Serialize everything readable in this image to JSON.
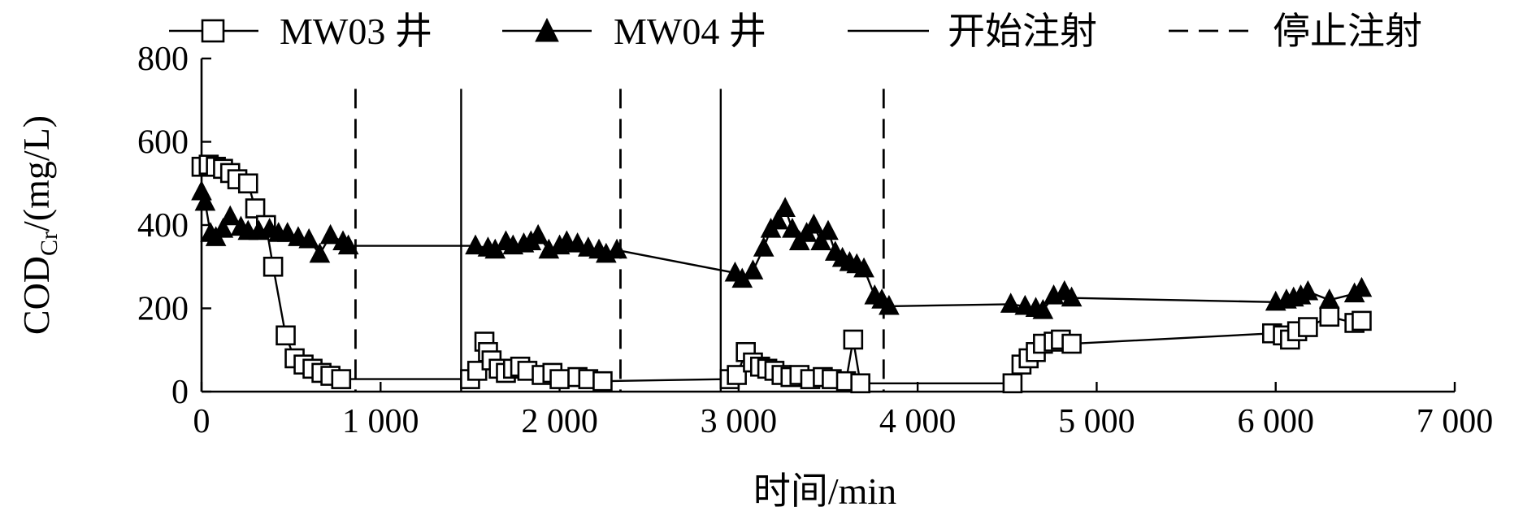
{
  "chart_data": {
    "type": "scatter",
    "title": "",
    "xlabel": "时间/min",
    "ylabel": {
      "main": "COD",
      "sub": "Cr",
      "rest": "/(mg/L)"
    },
    "xlim": [
      0,
      7000
    ],
    "ylim": [
      0,
      800
    ],
    "x_ticks": [
      {
        "value": 0,
        "label": "0"
      },
      {
        "value": 1000,
        "label": "1 000"
      },
      {
        "value": 2000,
        "label": "2 000"
      },
      {
        "value": 3000,
        "label": "3 000"
      },
      {
        "value": 4000,
        "label": "4 000"
      },
      {
        "value": 5000,
        "label": "5 000"
      },
      {
        "value": 6000,
        "label": "6 000"
      },
      {
        "value": 7000,
        "label": "7 000"
      }
    ],
    "y_ticks": [
      {
        "value": 0,
        "label": "0"
      },
      {
        "value": 200,
        "label": "200"
      },
      {
        "value": 400,
        "label": "400"
      },
      {
        "value": 600,
        "label": "600"
      },
      {
        "value": 800,
        "label": "800"
      }
    ],
    "grid": false,
    "legend_position": "top",
    "legend": [
      "MW03 井",
      "MW04 井",
      "开始注射",
      "停止注射"
    ],
    "series": [
      {
        "name": "MW03 井",
        "marker": "open-square",
        "points": [
          [
            0,
            540
          ],
          [
            40,
            545
          ],
          [
            80,
            540
          ],
          [
            120,
            535
          ],
          [
            160,
            525
          ],
          [
            200,
            510
          ],
          [
            260,
            500
          ],
          [
            300,
            440
          ],
          [
            360,
            400
          ],
          [
            400,
            300
          ],
          [
            470,
            135
          ],
          [
            520,
            80
          ],
          [
            570,
            65
          ],
          [
            620,
            55
          ],
          [
            670,
            45
          ],
          [
            720,
            38
          ],
          [
            780,
            30
          ],
          [
            1500,
            30
          ],
          [
            1540,
            50
          ],
          [
            1580,
            120
          ],
          [
            1600,
            95
          ],
          [
            1620,
            75
          ],
          [
            1660,
            55
          ],
          [
            1700,
            45
          ],
          [
            1740,
            55
          ],
          [
            1780,
            60
          ],
          [
            1820,
            50
          ],
          [
            1900,
            40
          ],
          [
            1960,
            45
          ],
          [
            2000,
            30
          ],
          [
            2100,
            35
          ],
          [
            2160,
            30
          ],
          [
            2240,
            25
          ],
          [
            2950,
            30
          ],
          [
            2990,
            40
          ],
          [
            3040,
            95
          ],
          [
            3080,
            70
          ],
          [
            3120,
            60
          ],
          [
            3160,
            55
          ],
          [
            3200,
            50
          ],
          [
            3240,
            40
          ],
          [
            3290,
            35
          ],
          [
            3340,
            40
          ],
          [
            3400,
            30
          ],
          [
            3470,
            35
          ],
          [
            3520,
            30
          ],
          [
            3600,
            25
          ],
          [
            3640,
            125
          ],
          [
            3680,
            20
          ],
          [
            4530,
            20
          ],
          [
            4580,
            65
          ],
          [
            4620,
            80
          ],
          [
            4660,
            95
          ],
          [
            4700,
            115
          ],
          [
            4760,
            120
          ],
          [
            4800,
            125
          ],
          [
            4860,
            115
          ],
          [
            5980,
            140
          ],
          [
            6040,
            135
          ],
          [
            6080,
            125
          ],
          [
            6120,
            145
          ],
          [
            6180,
            155
          ],
          [
            6300,
            180
          ],
          [
            6440,
            165
          ],
          [
            6480,
            170
          ]
        ]
      },
      {
        "name": "MW04 井",
        "marker": "filled-triangle",
        "points": [
          [
            0,
            480
          ],
          [
            20,
            455
          ],
          [
            50,
            380
          ],
          [
            80,
            370
          ],
          [
            120,
            390
          ],
          [
            160,
            420
          ],
          [
            220,
            395
          ],
          [
            260,
            385
          ],
          [
            320,
            385
          ],
          [
            380,
            390
          ],
          [
            430,
            380
          ],
          [
            480,
            380
          ],
          [
            540,
            370
          ],
          [
            600,
            365
          ],
          [
            660,
            330
          ],
          [
            720,
            375
          ],
          [
            790,
            360
          ],
          [
            820,
            350
          ],
          [
            1530,
            350
          ],
          [
            1600,
            345
          ],
          [
            1640,
            340
          ],
          [
            1700,
            360
          ],
          [
            1740,
            350
          ],
          [
            1800,
            355
          ],
          [
            1840,
            360
          ],
          [
            1880,
            375
          ],
          [
            1940,
            340
          ],
          [
            2000,
            350
          ],
          [
            2040,
            360
          ],
          [
            2100,
            355
          ],
          [
            2160,
            345
          ],
          [
            2220,
            340
          ],
          [
            2260,
            330
          ],
          [
            2320,
            340
          ],
          [
            2980,
            285
          ],
          [
            3020,
            270
          ],
          [
            3080,
            290
          ],
          [
            3140,
            345
          ],
          [
            3180,
            390
          ],
          [
            3220,
            410
          ],
          [
            3260,
            440
          ],
          [
            3300,
            390
          ],
          [
            3340,
            360
          ],
          [
            3380,
            380
          ],
          [
            3420,
            400
          ],
          [
            3460,
            360
          ],
          [
            3500,
            385
          ],
          [
            3540,
            335
          ],
          [
            3580,
            320
          ],
          [
            3620,
            310
          ],
          [
            3660,
            305
          ],
          [
            3700,
            295
          ],
          [
            3760,
            230
          ],
          [
            3800,
            220
          ],
          [
            3840,
            205
          ],
          [
            4520,
            210
          ],
          [
            4600,
            205
          ],
          [
            4660,
            200
          ],
          [
            4700,
            195
          ],
          [
            4760,
            230
          ],
          [
            4820,
            240
          ],
          [
            4860,
            225
          ],
          [
            6000,
            215
          ],
          [
            6060,
            220
          ],
          [
            6100,
            225
          ],
          [
            6140,
            230
          ],
          [
            6180,
            240
          ],
          [
            6300,
            220
          ],
          [
            6440,
            235
          ],
          [
            6480,
            248
          ]
        ]
      }
    ],
    "start_injection_x": [
      1450,
      2900
    ],
    "stop_injection_x": [
      860,
      2340,
      3810
    ]
  }
}
